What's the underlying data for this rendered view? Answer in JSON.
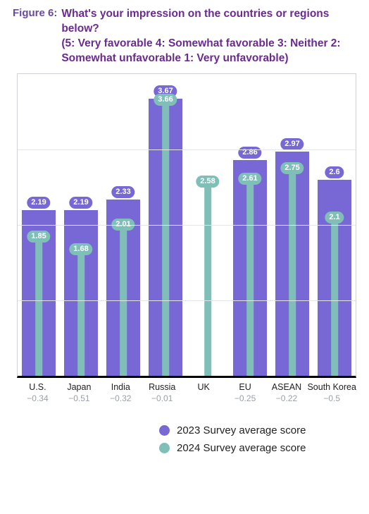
{
  "figure": {
    "label": "Figure 6:",
    "title": "What's your impression on the countries or regions below?\n (5: Very favorable 4: Somewhat favorable 3: Neither 2: Somewhat unfavorable 1: Very unfavorable)"
  },
  "chart": {
    "type": "bar",
    "ylim": [
      0,
      4.0
    ],
    "grid_divisions": 4,
    "grid_color": "#e3e5e8",
    "border_color": "#cfd2d6",
    "baseline_color": "#000000",
    "background_color": "#ffffff",
    "series": [
      {
        "key": "s2023",
        "label": "2023 Survey average score",
        "color": "#7868d6"
      },
      {
        "key": "s2024",
        "label": "2024 Survey average score",
        "color": "#7fbfb7"
      }
    ],
    "categories": [
      {
        "label": "U.S.",
        "s2023": 2.19,
        "s2024": 1.85,
        "delta": "−0.34"
      },
      {
        "label": "Japan",
        "s2023": 2.19,
        "s2024": 1.68,
        "delta": "−0.51"
      },
      {
        "label": "India",
        "s2023": 2.33,
        "s2024": 2.01,
        "delta": "−0.32"
      },
      {
        "label": "Russia",
        "s2023": 3.67,
        "s2024": 3.66,
        "delta": "−0.01"
      },
      {
        "label": "UK",
        "s2023": null,
        "s2024": 2.58,
        "delta": ""
      },
      {
        "label": "EU",
        "s2023": 2.86,
        "s2024": 2.61,
        "delta": "−0.25"
      },
      {
        "label": "ASEAN",
        "s2023": 2.97,
        "s2024": 2.75,
        "delta": "−0.22"
      },
      {
        "label": "South Korea",
        "s2023": 2.6,
        "s2024": 2.1,
        "delta": "−0.5",
        "display": {
          "s2023": "2.6",
          "s2024": "2.1"
        }
      }
    ],
    "label_fontsize": 12.5,
    "delta_fontsize": 12,
    "pill_fontsize": 11,
    "bar2023_width_pct": 80,
    "bar2024_width_pct": 16
  },
  "legend": {
    "dot_size": 15,
    "fontsize": 15
  }
}
